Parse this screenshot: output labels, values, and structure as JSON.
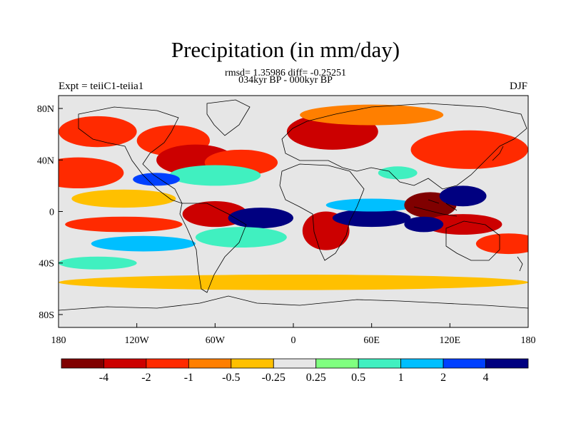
{
  "title": "Precipitation (in mm/day)",
  "stats_line": "rmsd= 1.35986 diff= -0.25251",
  "period_line": "034kyr BP - 000kyr BP",
  "left_label": "Expt = teiiC1-teiia1",
  "right_label": "DJF",
  "chart_data": {
    "type": "heatmap",
    "variable": "Precipitation (in mm/day)",
    "projection": "cylindrical equidistant",
    "lon_range": [
      -180,
      180
    ],
    "lat_range": [
      -90,
      90
    ],
    "x_ticks": [
      "180",
      "120W",
      "60W",
      "0",
      "60E",
      "120E",
      "180"
    ],
    "x_tick_values": [
      -180,
      -120,
      -60,
      0,
      60,
      120,
      180
    ],
    "y_ticks": [
      "80N",
      "40N",
      "0",
      "40S",
      "80S"
    ],
    "y_tick_values": [
      80,
      40,
      0,
      -40,
      -80
    ],
    "colorbar": {
      "labels": [
        "-4",
        "-2",
        "-1",
        "-0.5",
        "-0.25",
        "0.25",
        "0.5",
        "1",
        "2",
        "4"
      ],
      "colors": [
        "#800000",
        "#cc0000",
        "#ff2a00",
        "#ff7f00",
        "#ffc000",
        "#e6e6e6",
        "#80ff80",
        "#40f0c0",
        "#00bfff",
        "#0040ff",
        "#000080"
      ]
    },
    "regions": [
      {
        "lon": -150,
        "lat": 62,
        "rx": 30,
        "ry": 12,
        "level": 2
      },
      {
        "lon": -92,
        "lat": 55,
        "rx": 28,
        "ry": 12,
        "level": 2
      },
      {
        "lon": -75,
        "lat": 40,
        "rx": 30,
        "ry": 12,
        "level": 1
      },
      {
        "lon": -40,
        "lat": 38,
        "rx": 28,
        "ry": 10,
        "level": 2
      },
      {
        "lon": 30,
        "lat": 62,
        "rx": 35,
        "ry": 14,
        "level": 1
      },
      {
        "lon": 60,
        "lat": 75,
        "rx": 55,
        "ry": 8,
        "level": 3
      },
      {
        "lon": 135,
        "lat": 48,
        "rx": 45,
        "ry": 15,
        "level": 2
      },
      {
        "lon": -165,
        "lat": 30,
        "rx": 35,
        "ry": 12,
        "level": 2
      },
      {
        "lon": -130,
        "lat": 10,
        "rx": 40,
        "ry": 7,
        "level": 4
      },
      {
        "lon": -60,
        "lat": 28,
        "rx": 35,
        "ry": 8,
        "level": 7
      },
      {
        "lon": -105,
        "lat": 25,
        "rx": 18,
        "ry": 5,
        "level": 9
      },
      {
        "lon": -60,
        "lat": -2,
        "rx": 25,
        "ry": 10,
        "level": 1
      },
      {
        "lon": -25,
        "lat": -5,
        "rx": 25,
        "ry": 8,
        "level": 10
      },
      {
        "lon": -130,
        "lat": -10,
        "rx": 45,
        "ry": 6,
        "level": 2
      },
      {
        "lon": -115,
        "lat": -25,
        "rx": 40,
        "ry": 6,
        "level": 8
      },
      {
        "lon": -40,
        "lat": -20,
        "rx": 35,
        "ry": 8,
        "level": 7
      },
      {
        "lon": 25,
        "lat": -15,
        "rx": 18,
        "ry": 15,
        "level": 1
      },
      {
        "lon": 60,
        "lat": -5,
        "rx": 30,
        "ry": 7,
        "level": 10
      },
      {
        "lon": 60,
        "lat": 5,
        "rx": 35,
        "ry": 5,
        "level": 8
      },
      {
        "lon": 105,
        "lat": 5,
        "rx": 20,
        "ry": 10,
        "level": 0
      },
      {
        "lon": 130,
        "lat": 12,
        "rx": 18,
        "ry": 8,
        "level": 10
      },
      {
        "lon": 130,
        "lat": -10,
        "rx": 30,
        "ry": 8,
        "level": 1
      },
      {
        "lon": 100,
        "lat": -10,
        "rx": 15,
        "ry": 6,
        "level": 10
      },
      {
        "lon": 165,
        "lat": -25,
        "rx": 25,
        "ry": 8,
        "level": 2
      },
      {
        "lon": 0,
        "lat": -55,
        "rx": 180,
        "ry": 6,
        "level": 4
      },
      {
        "lon": -150,
        "lat": -40,
        "rx": 30,
        "ry": 5,
        "level": 7
      },
      {
        "lon": 80,
        "lat": 30,
        "rx": 15,
        "ry": 5,
        "level": 7
      }
    ]
  }
}
